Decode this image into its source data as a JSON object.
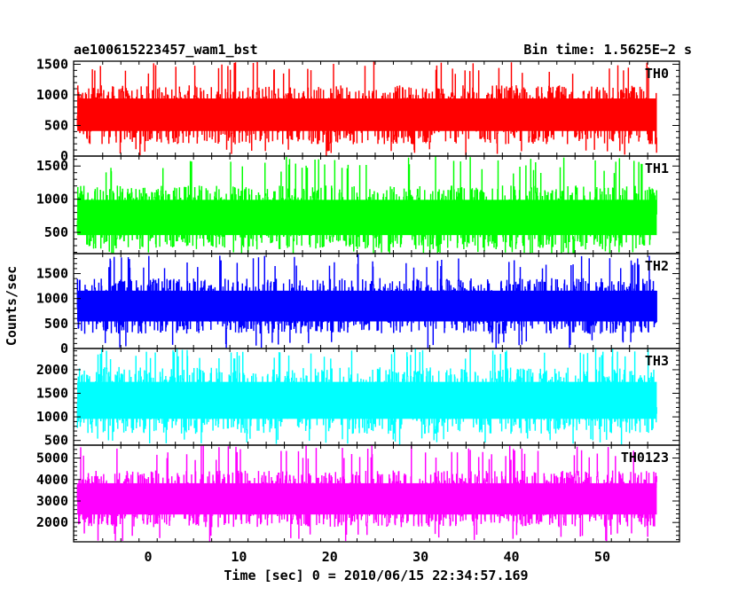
{
  "header": {
    "title": "ae100615223457_wam1_bst",
    "bin_time": "Bin time: 1.5625E−2 s"
  },
  "chart_data": {
    "type": "line",
    "title": "ae100615223457_wam1_bst",
    "subtitle": "Bin time: 1.5625E−2 s",
    "xlabel": "Time [sec] 0 = 2010/06/15 22:34:57.169",
    "ylabel": "Counts/sec",
    "xlim": [
      -8.2,
      58.5
    ],
    "x_ticks": [
      0,
      10,
      20,
      30,
      40,
      50
    ],
    "x_tick_labels": [
      "0",
      "10",
      "20",
      "30",
      "40",
      "50"
    ],
    "data_x_range": [
      -7.8,
      56.0
    ],
    "grid": false,
    "legend": "none",
    "panels": [
      {
        "name": "TH0",
        "color": "#ff0000",
        "ylim": [
          0,
          1550
        ],
        "y_ticks": [
          0,
          500,
          1000,
          1500
        ],
        "y_tick_labels": [
          "0",
          "500",
          "1000",
          "1500"
        ],
        "typical_min": 200,
        "typical_max": 1150,
        "mean": 660,
        "spike_min": 0,
        "spike_max": 1540
      },
      {
        "name": "TH1",
        "color": "#00ff00",
        "ylim": [
          180,
          1650
        ],
        "y_ticks": [
          500,
          1000,
          1500
        ],
        "y_tick_labels": [
          "500",
          "1000",
          "1500"
        ],
        "typical_min": 250,
        "typical_max": 1200,
        "mean": 680,
        "spike_min": 180,
        "spike_max": 1640
      },
      {
        "name": "TH2",
        "color": "#0000ff",
        "ylim": [
          0,
          1900
        ],
        "y_ticks": [
          0,
          500,
          1000,
          1500
        ],
        "y_tick_labels": [
          "0",
          "500",
          "1000",
          "1500"
        ],
        "typical_min": 300,
        "typical_max": 1400,
        "mean": 820,
        "spike_min": 0,
        "spike_max": 1880
      },
      {
        "name": "TH3",
        "color": "#00ffff",
        "ylim": [
          400,
          2450
        ],
        "y_ticks": [
          500,
          1000,
          1500,
          2000
        ],
        "y_tick_labels": [
          "500",
          "1000",
          "1500",
          "2000"
        ],
        "typical_min": 650,
        "typical_max": 2050,
        "mean": 1300,
        "spike_min": 420,
        "spike_max": 2450
      },
      {
        "name": "TH0123",
        "color": "#ff00ff",
        "ylim": [
          1100,
          5600
        ],
        "y_ticks": [
          2000,
          3000,
          4000,
          5000
        ],
        "y_tick_labels": [
          "2000",
          "3000",
          "4000",
          "5000"
        ],
        "typical_min": 1800,
        "typical_max": 4400,
        "mean": 3000,
        "spike_min": 1100,
        "spike_max": 5600
      }
    ]
  }
}
